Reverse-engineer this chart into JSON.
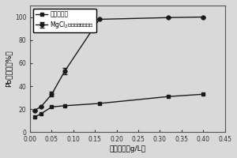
{
  "x": [
    0.01,
    0.025,
    0.05,
    0.08,
    0.16,
    0.32,
    0.4
  ],
  "y_biochar": [
    13,
    16,
    22,
    23,
    25,
    31,
    33
  ],
  "y_mgcl2": [
    19,
    22,
    33,
    53,
    98,
    99.5,
    100
  ],
  "y_mgcl2_err_low": [
    0,
    0,
    2,
    3,
    0,
    0,
    0
  ],
  "y_mgcl2_err_high": [
    0,
    0,
    2,
    3,
    0,
    0,
    0
  ],
  "ylabel": "Pb去除率（%）",
  "xlabel": "材料浓度（g/L）",
  "legend1": "蓝藻生物炭",
  "legend2": "MgCl$_2$改性的蓝藻生物炭",
  "xlim": [
    0,
    0.45
  ],
  "ylim": [
    0,
    110
  ],
  "yticks": [
    0,
    20,
    40,
    60,
    80,
    100
  ],
  "xticks": [
    0.0,
    0.05,
    0.1,
    0.15,
    0.2,
    0.25,
    0.3,
    0.35,
    0.4,
    0.45
  ],
  "color": "#1a1a1a",
  "bg_color": "#d9d9d9"
}
